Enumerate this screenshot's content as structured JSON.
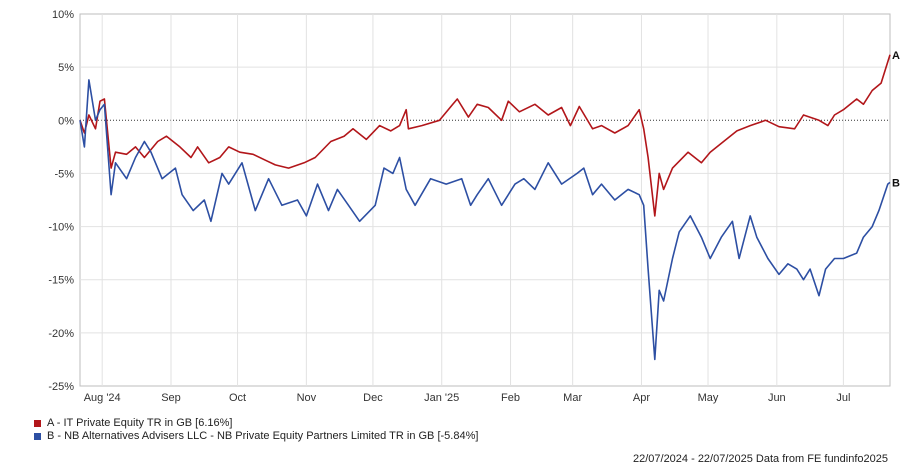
{
  "chart_data": {
    "type": "line",
    "title": "",
    "xlabel": "",
    "ylabel": "",
    "ylim": [
      -25,
      10
    ],
    "y_ticks": [
      10,
      5,
      0,
      -5,
      -10,
      -15,
      -20,
      -25
    ],
    "y_tick_labels": [
      "10%",
      "5%",
      "0%",
      "-5%",
      "-10%",
      "-15%",
      "-20%",
      "-25%"
    ],
    "x_range": [
      "2024-07-22",
      "2025-07-22"
    ],
    "x_tick_labels": [
      {
        "label": "Aug '24",
        "date": "2024-08-01"
      },
      {
        "label": "Sep",
        "date": "2024-09-01"
      },
      {
        "label": "Oct",
        "date": "2024-10-01"
      },
      {
        "label": "Nov",
        "date": "2024-11-01"
      },
      {
        "label": "Dec",
        "date": "2024-12-01"
      },
      {
        "label": "Jan '25",
        "date": "2025-01-01"
      },
      {
        "label": "Feb",
        "date": "2025-02-01"
      },
      {
        "label": "Mar",
        "date": "2025-03-01"
      },
      {
        "label": "Apr",
        "date": "2025-04-01"
      },
      {
        "label": "May",
        "date": "2025-05-01"
      },
      {
        "label": "Jun",
        "date": "2025-06-01"
      },
      {
        "label": "Jul",
        "date": "2025-07-01"
      }
    ],
    "grid": true,
    "zero_line": "dotted",
    "series": [
      {
        "name": "A - IT Private Equity TR in GB [6.16%]",
        "end_label": "A",
        "color": "#b2161a",
        "points": [
          [
            "2024-07-22",
            0
          ],
          [
            "2024-07-24",
            -1.2
          ],
          [
            "2024-07-26",
            0.5
          ],
          [
            "2024-07-29",
            -0.8
          ],
          [
            "2024-07-31",
            1.8
          ],
          [
            "2024-08-02",
            2.0
          ],
          [
            "2024-08-05",
            -4.5
          ],
          [
            "2024-08-07",
            -3.0
          ],
          [
            "2024-08-12",
            -3.2
          ],
          [
            "2024-08-16",
            -2.5
          ],
          [
            "2024-08-20",
            -3.5
          ],
          [
            "2024-08-26",
            -2.0
          ],
          [
            "2024-08-30",
            -1.5
          ],
          [
            "2024-09-05",
            -2.5
          ],
          [
            "2024-09-10",
            -3.5
          ],
          [
            "2024-09-13",
            -2.5
          ],
          [
            "2024-09-18",
            -4.0
          ],
          [
            "2024-09-23",
            -3.5
          ],
          [
            "2024-09-27",
            -2.5
          ],
          [
            "2024-10-02",
            -3.0
          ],
          [
            "2024-10-08",
            -3.2
          ],
          [
            "2024-10-14",
            -3.8
          ],
          [
            "2024-10-18",
            -4.2
          ],
          [
            "2024-10-24",
            -4.5
          ],
          [
            "2024-10-31",
            -4.0
          ],
          [
            "2024-11-05",
            -3.5
          ],
          [
            "2024-11-12",
            -2.0
          ],
          [
            "2024-11-18",
            -1.5
          ],
          [
            "2024-11-22",
            -0.8
          ],
          [
            "2024-11-28",
            -1.8
          ],
          [
            "2024-12-04",
            -0.5
          ],
          [
            "2024-12-09",
            -1.0
          ],
          [
            "2024-12-13",
            -0.5
          ],
          [
            "2024-12-16",
            1.0
          ],
          [
            "2024-12-17",
            -0.8
          ],
          [
            "2024-12-23",
            -0.5
          ],
          [
            "2024-12-31",
            0
          ],
          [
            "2025-01-06",
            1.5
          ],
          [
            "2025-01-08",
            2.0
          ],
          [
            "2025-01-13",
            0.3
          ],
          [
            "2025-01-17",
            1.5
          ],
          [
            "2025-01-22",
            1.2
          ],
          [
            "2025-01-28",
            0
          ],
          [
            "2025-01-31",
            1.8
          ],
          [
            "2025-02-05",
            0.8
          ],
          [
            "2025-02-12",
            1.5
          ],
          [
            "2025-02-18",
            0.5
          ],
          [
            "2025-02-24",
            1.2
          ],
          [
            "2025-02-28",
            -0.5
          ],
          [
            "2025-03-04",
            1.3
          ],
          [
            "2025-03-10",
            -0.8
          ],
          [
            "2025-03-14",
            -0.5
          ],
          [
            "2025-03-20",
            -1.2
          ],
          [
            "2025-03-26",
            -0.5
          ],
          [
            "2025-03-31",
            1.0
          ],
          [
            "2025-04-02",
            -0.8
          ],
          [
            "2025-04-04",
            -3.5
          ],
          [
            "2025-04-07",
            -9.0
          ],
          [
            "2025-04-09",
            -5.0
          ],
          [
            "2025-04-11",
            -6.5
          ],
          [
            "2025-04-15",
            -4.5
          ],
          [
            "2025-04-22",
            -3.0
          ],
          [
            "2025-04-28",
            -4.0
          ],
          [
            "2025-05-02",
            -3.0
          ],
          [
            "2025-05-08",
            -2.0
          ],
          [
            "2025-05-14",
            -1.0
          ],
          [
            "2025-05-20",
            -0.5
          ],
          [
            "2025-05-27",
            0
          ],
          [
            "2025-06-02",
            -0.6
          ],
          [
            "2025-06-09",
            -0.8
          ],
          [
            "2025-06-13",
            0.5
          ],
          [
            "2025-06-20",
            0
          ],
          [
            "2025-06-24",
            -0.5
          ],
          [
            "2025-06-27",
            0.5
          ],
          [
            "2025-07-01",
            1.0
          ],
          [
            "2025-07-07",
            2.0
          ],
          [
            "2025-07-10",
            1.5
          ],
          [
            "2025-07-14",
            2.8
          ],
          [
            "2025-07-18",
            3.5
          ],
          [
            "2025-07-21",
            5.5
          ],
          [
            "2025-07-22",
            6.16
          ]
        ]
      },
      {
        "name": "B - NB Alternatives Advisers LLC - NB Private Equity Partners Limited TR in GB [-5.84%]",
        "end_label": "B",
        "color": "#2d4fa3",
        "points": [
          [
            "2024-07-22",
            0
          ],
          [
            "2024-07-24",
            -2.5
          ],
          [
            "2024-07-26",
            3.8
          ],
          [
            "2024-07-29",
            0
          ],
          [
            "2024-07-31",
            1.0
          ],
          [
            "2024-08-02",
            1.5
          ],
          [
            "2024-08-05",
            -7.0
          ],
          [
            "2024-08-07",
            -4.0
          ],
          [
            "2024-08-12",
            -5.5
          ],
          [
            "2024-08-16",
            -3.5
          ],
          [
            "2024-08-20",
            -2.0
          ],
          [
            "2024-08-23",
            -3.0
          ],
          [
            "2024-08-28",
            -5.5
          ],
          [
            "2024-09-03",
            -4.5
          ],
          [
            "2024-09-06",
            -7.0
          ],
          [
            "2024-09-11",
            -8.5
          ],
          [
            "2024-09-16",
            -7.5
          ],
          [
            "2024-09-19",
            -9.5
          ],
          [
            "2024-09-24",
            -5.0
          ],
          [
            "2024-09-27",
            -6.0
          ],
          [
            "2024-10-03",
            -4.0
          ],
          [
            "2024-10-09",
            -8.5
          ],
          [
            "2024-10-15",
            -5.5
          ],
          [
            "2024-10-21",
            -8.0
          ],
          [
            "2024-10-28",
            -7.5
          ],
          [
            "2024-11-01",
            -9.0
          ],
          [
            "2024-11-06",
            -6.0
          ],
          [
            "2024-11-11",
            -8.5
          ],
          [
            "2024-11-15",
            -6.5
          ],
          [
            "2024-11-20",
            -8.0
          ],
          [
            "2024-11-25",
            -9.5
          ],
          [
            "2024-12-02",
            -8.0
          ],
          [
            "2024-12-06",
            -4.5
          ],
          [
            "2024-12-10",
            -5.0
          ],
          [
            "2024-12-13",
            -3.5
          ],
          [
            "2024-12-16",
            -6.5
          ],
          [
            "2024-12-20",
            -8.0
          ],
          [
            "2024-12-27",
            -5.5
          ],
          [
            "2025-01-03",
            -6.0
          ],
          [
            "2025-01-10",
            -5.5
          ],
          [
            "2025-01-14",
            -8.0
          ],
          [
            "2025-01-17",
            -7.0
          ],
          [
            "2025-01-22",
            -5.5
          ],
          [
            "2025-01-28",
            -8.0
          ],
          [
            "2025-02-03",
            -6.0
          ],
          [
            "2025-02-07",
            -5.5
          ],
          [
            "2025-02-12",
            -6.5
          ],
          [
            "2025-02-18",
            -4.0
          ],
          [
            "2025-02-24",
            -6.0
          ],
          [
            "2025-03-03",
            -5.0
          ],
          [
            "2025-03-06",
            -4.5
          ],
          [
            "2025-03-10",
            -7.0
          ],
          [
            "2025-03-14",
            -6.0
          ],
          [
            "2025-03-20",
            -7.5
          ],
          [
            "2025-03-26",
            -6.5
          ],
          [
            "2025-03-31",
            -7.0
          ],
          [
            "2025-04-02",
            -8.0
          ],
          [
            "2025-04-04",
            -14.0
          ],
          [
            "2025-04-07",
            -22.5
          ],
          [
            "2025-04-09",
            -16.0
          ],
          [
            "2025-04-11",
            -17.0
          ],
          [
            "2025-04-15",
            -13.0
          ],
          [
            "2025-04-18",
            -10.5
          ],
          [
            "2025-04-23",
            -9.0
          ],
          [
            "2025-04-28",
            -11.0
          ],
          [
            "2025-05-02",
            -13.0
          ],
          [
            "2025-05-07",
            -11.0
          ],
          [
            "2025-05-12",
            -9.5
          ],
          [
            "2025-05-15",
            -13.0
          ],
          [
            "2025-05-20",
            -9.0
          ],
          [
            "2025-05-23",
            -11.0
          ],
          [
            "2025-05-28",
            -13.0
          ],
          [
            "2025-06-02",
            -14.5
          ],
          [
            "2025-06-06",
            -13.5
          ],
          [
            "2025-06-10",
            -14.0
          ],
          [
            "2025-06-13",
            -15.0
          ],
          [
            "2025-06-16",
            -14.0
          ],
          [
            "2025-06-20",
            -16.5
          ],
          [
            "2025-06-23",
            -14.0
          ],
          [
            "2025-06-27",
            -13.0
          ],
          [
            "2025-07-01",
            -13.0
          ],
          [
            "2025-07-07",
            -12.5
          ],
          [
            "2025-07-10",
            -11.0
          ],
          [
            "2025-07-14",
            -10.0
          ],
          [
            "2025-07-17",
            -8.5
          ],
          [
            "2025-07-21",
            -6.0
          ],
          [
            "2025-07-22",
            -5.84
          ]
        ]
      }
    ]
  },
  "legend": {
    "items": [
      {
        "text": "A - IT Private Equity TR in GB [6.16%]",
        "color": "#b2161a"
      },
      {
        "text": "B - NB Alternatives Advisers LLC - NB Private Equity Partners Limited TR in GB [-5.84%]",
        "color": "#2d4fa3"
      }
    ]
  },
  "footer": {
    "text": "22/07/2024 - 22/07/2025 Data from FE fundinfo2025"
  }
}
